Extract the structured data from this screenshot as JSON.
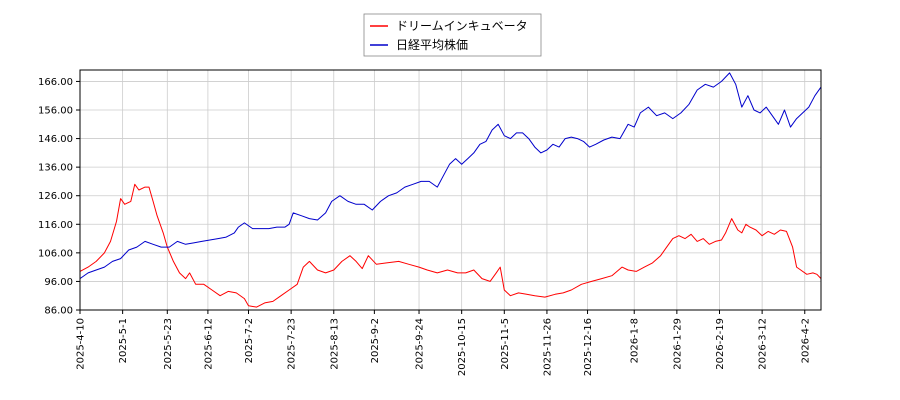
{
  "chart_data": {
    "type": "line",
    "title": "",
    "xlabel": "",
    "ylabel": "",
    "ylim": [
      86,
      170
    ],
    "yticks": [
      86,
      96,
      106,
      116,
      126,
      136,
      146,
      156,
      166
    ],
    "ytick_labels": [
      "86.00",
      "96.00",
      "106.00",
      "116.00",
      "126.00",
      "136.00",
      "146.00",
      "156.00",
      "166.00"
    ],
    "xlim": [
      "2025-04-10",
      "2026-04-10"
    ],
    "xticks": [
      "2025-4-10",
      "2025-5-1",
      "2025-5-23",
      "2025-6-12",
      "2025-7-2",
      "2025-7-23",
      "2025-8-13",
      "2025-9-2",
      "2025-9-24",
      "2025-10-15",
      "2025-11-5",
      "2025-11-26",
      "2025-12-16",
      "2026-1-8",
      "2026-1-29",
      "2026-2-19",
      "2026-3-12",
      "2026-4-2"
    ],
    "grid": true,
    "legend_position": "top-center",
    "series": [
      {
        "name": "ドリームインキュベータ",
        "color": "#ff0000",
        "points": [
          [
            "2025-04-10",
            99.5
          ],
          [
            "2025-04-14",
            101
          ],
          [
            "2025-04-18",
            103
          ],
          [
            "2025-04-22",
            106
          ],
          [
            "2025-04-25",
            110
          ],
          [
            "2025-04-28",
            117
          ],
          [
            "2025-04-30",
            125
          ],
          [
            "2025-05-02",
            123
          ],
          [
            "2025-05-05",
            124
          ],
          [
            "2025-05-07",
            130
          ],
          [
            "2025-05-09",
            128
          ],
          [
            "2025-05-12",
            129
          ],
          [
            "2025-05-14",
            129
          ],
          [
            "2025-05-16",
            124
          ],
          [
            "2025-05-18",
            119
          ],
          [
            "2025-05-21",
            113
          ],
          [
            "2025-05-23",
            108
          ],
          [
            "2025-05-26",
            103
          ],
          [
            "2025-05-29",
            99
          ],
          [
            "2025-06-01",
            97
          ],
          [
            "2025-06-03",
            99
          ],
          [
            "2025-06-06",
            95
          ],
          [
            "2025-06-10",
            95
          ],
          [
            "2025-06-14",
            93
          ],
          [
            "2025-06-18",
            91
          ],
          [
            "2025-06-22",
            92.5
          ],
          [
            "2025-06-26",
            92
          ],
          [
            "2025-06-30",
            90
          ],
          [
            "2025-07-02",
            87.5
          ],
          [
            "2025-07-06",
            87
          ],
          [
            "2025-07-10",
            88.5
          ],
          [
            "2025-07-14",
            89
          ],
          [
            "2025-07-18",
            91
          ],
          [
            "2025-07-22",
            93
          ],
          [
            "2025-07-26",
            95
          ],
          [
            "2025-07-29",
            101
          ],
          [
            "2025-08-01",
            103
          ],
          [
            "2025-08-05",
            100
          ],
          [
            "2025-08-09",
            99
          ],
          [
            "2025-08-13",
            100
          ],
          [
            "2025-08-17",
            103
          ],
          [
            "2025-08-21",
            105
          ],
          [
            "2025-08-24",
            103
          ],
          [
            "2025-08-27",
            100.5
          ],
          [
            "2025-08-30",
            105
          ],
          [
            "2025-09-03",
            102
          ],
          [
            "2025-09-08",
            102.5
          ],
          [
            "2025-09-14",
            103
          ],
          [
            "2025-09-19",
            102
          ],
          [
            "2025-09-24",
            101
          ],
          [
            "2025-09-28",
            100
          ],
          [
            "2025-10-03",
            99
          ],
          [
            "2025-10-08",
            100
          ],
          [
            "2025-10-13",
            99
          ],
          [
            "2025-10-17",
            99
          ],
          [
            "2025-10-21",
            100
          ],
          [
            "2025-10-25",
            97
          ],
          [
            "2025-10-29",
            96
          ],
          [
            "2025-11-01",
            99
          ],
          [
            "2025-11-03",
            101
          ],
          [
            "2025-11-05",
            93
          ],
          [
            "2025-11-08",
            91
          ],
          [
            "2025-11-12",
            92
          ],
          [
            "2025-11-16",
            91.5
          ],
          [
            "2025-11-20",
            91
          ],
          [
            "2025-11-25",
            90.5
          ],
          [
            "2025-11-30",
            91.5
          ],
          [
            "2025-12-04",
            92
          ],
          [
            "2025-12-08",
            93
          ],
          [
            "2025-12-13",
            95
          ],
          [
            "2025-12-18",
            96
          ],
          [
            "2025-12-23",
            97
          ],
          [
            "2025-12-28",
            98
          ],
          [
            "2026-01-02",
            101
          ],
          [
            "2026-01-05",
            100
          ],
          [
            "2026-01-09",
            99.5
          ],
          [
            "2026-01-13",
            101
          ],
          [
            "2026-01-17",
            102.5
          ],
          [
            "2026-01-21",
            105
          ],
          [
            "2026-01-24",
            108
          ],
          [
            "2026-01-27",
            111
          ],
          [
            "2026-01-30",
            112
          ],
          [
            "2026-02-02",
            111
          ],
          [
            "2026-02-05",
            112.5
          ],
          [
            "2026-02-08",
            110
          ],
          [
            "2026-02-11",
            111
          ],
          [
            "2026-02-14",
            109
          ],
          [
            "2026-02-17",
            110
          ],
          [
            "2026-02-20",
            110.5
          ],
          [
            "2026-02-22",
            113
          ],
          [
            "2026-02-25",
            118
          ],
          [
            "2026-02-28",
            114
          ],
          [
            "2026-03-02",
            113
          ],
          [
            "2026-03-04",
            116
          ],
          [
            "2026-03-06",
            115
          ],
          [
            "2026-03-09",
            114
          ],
          [
            "2026-03-12",
            112
          ],
          [
            "2026-03-15",
            113.5
          ],
          [
            "2026-03-18",
            112.5
          ],
          [
            "2026-03-21",
            114
          ],
          [
            "2026-03-24",
            113.5
          ],
          [
            "2026-03-27",
            108
          ],
          [
            "2026-03-29",
            101
          ],
          [
            "2026-03-31",
            100
          ],
          [
            "2026-04-03",
            98.5
          ],
          [
            "2026-04-06",
            99
          ],
          [
            "2026-04-08",
            98.5
          ],
          [
            "2026-04-10",
            97
          ]
        ]
      },
      {
        "name": "日経平均株価",
        "color": "#0000cc",
        "points": [
          [
            "2025-04-10",
            97
          ],
          [
            "2025-04-14",
            99
          ],
          [
            "2025-04-18",
            100
          ],
          [
            "2025-04-22",
            101
          ],
          [
            "2025-04-26",
            103
          ],
          [
            "2025-04-30",
            104
          ],
          [
            "2025-05-04",
            107
          ],
          [
            "2025-05-08",
            108
          ],
          [
            "2025-05-12",
            110
          ],
          [
            "2025-05-16",
            109
          ],
          [
            "2025-05-20",
            108
          ],
          [
            "2025-05-24",
            108
          ],
          [
            "2025-05-28",
            110
          ],
          [
            "2025-06-01",
            109
          ],
          [
            "2025-06-05",
            109.5
          ],
          [
            "2025-06-09",
            110
          ],
          [
            "2025-06-13",
            110.5
          ],
          [
            "2025-06-17",
            111
          ],
          [
            "2025-06-21",
            111.5
          ],
          [
            "2025-06-25",
            113
          ],
          [
            "2025-06-27",
            115
          ],
          [
            "2025-06-30",
            116.5
          ],
          [
            "2025-07-04",
            114.5
          ],
          [
            "2025-07-08",
            114.5
          ],
          [
            "2025-07-12",
            114.5
          ],
          [
            "2025-07-16",
            115
          ],
          [
            "2025-07-20",
            115
          ],
          [
            "2025-07-22",
            116
          ],
          [
            "2025-07-24",
            120
          ],
          [
            "2025-07-28",
            119
          ],
          [
            "2025-08-01",
            118
          ],
          [
            "2025-08-05",
            117.5
          ],
          [
            "2025-08-09",
            120
          ],
          [
            "2025-08-12",
            124
          ],
          [
            "2025-08-16",
            126
          ],
          [
            "2025-08-20",
            124
          ],
          [
            "2025-08-24",
            123
          ],
          [
            "2025-08-28",
            123
          ],
          [
            "2025-09-01",
            121
          ],
          [
            "2025-09-05",
            124
          ],
          [
            "2025-09-09",
            126
          ],
          [
            "2025-09-13",
            127
          ],
          [
            "2025-09-17",
            129
          ],
          [
            "2025-09-21",
            130
          ],
          [
            "2025-09-25",
            131
          ],
          [
            "2025-09-29",
            131
          ],
          [
            "2025-10-03",
            129
          ],
          [
            "2025-10-06",
            133
          ],
          [
            "2025-10-09",
            137
          ],
          [
            "2025-10-12",
            139
          ],
          [
            "2025-10-15",
            137
          ],
          [
            "2025-10-18",
            139
          ],
          [
            "2025-10-21",
            141
          ],
          [
            "2025-10-24",
            144
          ],
          [
            "2025-10-27",
            145
          ],
          [
            "2025-10-30",
            149
          ],
          [
            "2025-11-02",
            151
          ],
          [
            "2025-11-05",
            147
          ],
          [
            "2025-11-08",
            146
          ],
          [
            "2025-11-11",
            148
          ],
          [
            "2025-11-14",
            148
          ],
          [
            "2025-11-17",
            146
          ],
          [
            "2025-11-20",
            143
          ],
          [
            "2025-11-23",
            141
          ],
          [
            "2025-11-26",
            142
          ],
          [
            "2025-11-29",
            144
          ],
          [
            "2025-12-02",
            143
          ],
          [
            "2025-12-05",
            146
          ],
          [
            "2025-12-08",
            146.5
          ],
          [
            "2025-12-11",
            146
          ],
          [
            "2025-12-14",
            145
          ],
          [
            "2025-12-17",
            143
          ],
          [
            "2025-12-20",
            144
          ],
          [
            "2025-12-24",
            145.5
          ],
          [
            "2025-12-28",
            146.5
          ],
          [
            "2026-01-01",
            146
          ],
          [
            "2026-01-05",
            151
          ],
          [
            "2026-01-08",
            150
          ],
          [
            "2026-01-11",
            155
          ],
          [
            "2026-01-15",
            157
          ],
          [
            "2026-01-19",
            154
          ],
          [
            "2026-01-23",
            155
          ],
          [
            "2026-01-27",
            153
          ],
          [
            "2026-01-31",
            155
          ],
          [
            "2026-02-04",
            158
          ],
          [
            "2026-02-08",
            163
          ],
          [
            "2026-02-12",
            165
          ],
          [
            "2026-02-16",
            164
          ],
          [
            "2026-02-20",
            166
          ],
          [
            "2026-02-24",
            169
          ],
          [
            "2026-02-27",
            165
          ],
          [
            "2026-03-02",
            157
          ],
          [
            "2026-03-05",
            161
          ],
          [
            "2026-03-08",
            156
          ],
          [
            "2026-03-11",
            155
          ],
          [
            "2026-03-14",
            157
          ],
          [
            "2026-03-17",
            154
          ],
          [
            "2026-03-20",
            151
          ],
          [
            "2026-03-23",
            156
          ],
          [
            "2026-03-26",
            150
          ],
          [
            "2026-03-29",
            153
          ],
          [
            "2026-04-01",
            155
          ],
          [
            "2026-04-04",
            157
          ],
          [
            "2026-04-07",
            161
          ],
          [
            "2026-04-10",
            164
          ]
        ]
      }
    ]
  }
}
